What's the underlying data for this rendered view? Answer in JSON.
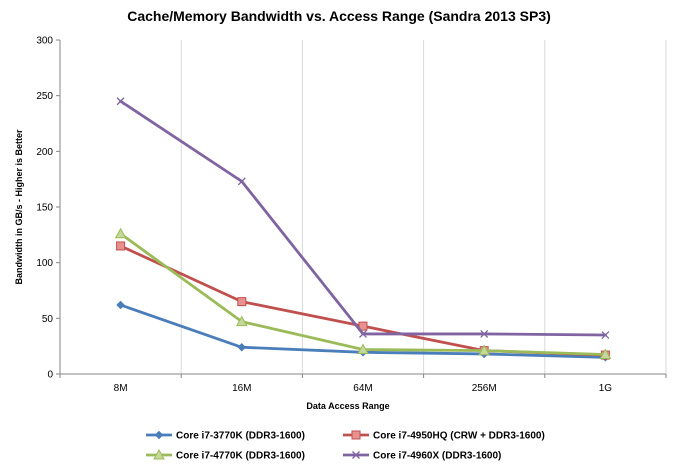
{
  "chart_data": {
    "type": "line",
    "title": "Cache/Memory Bandwidth vs. Access Range (Sandra 2013 SP3)",
    "xlabel": "Data Access Range",
    "ylabel": "Bandwidth in GB/s - Higher is Better",
    "categories": [
      "8M",
      "16M",
      "64M",
      "256M",
      "1G"
    ],
    "ylim": [
      0,
      300
    ],
    "yticks": [
      0,
      50,
      100,
      150,
      200,
      250,
      300
    ],
    "grid": "vertical",
    "legend_position": "bottom",
    "series": [
      {
        "name": "Core i7-3770K (DDR3-1600)",
        "color": "#4a7ebb",
        "marker": "diamond",
        "values": [
          62,
          24,
          19.5,
          18,
          15
        ]
      },
      {
        "name": "Core i7-4950HQ (CRW + DDR3-1600)",
        "color": "#c0504d",
        "marker": "square",
        "values": [
          115,
          65,
          43,
          21,
          17
        ]
      },
      {
        "name": "Core i7-4770K (DDR3-1600)",
        "color": "#9bbb59",
        "marker": "triangle",
        "values": [
          126,
          47,
          22,
          21,
          17.5
        ]
      },
      {
        "name": "Core i7-4960X (DDR3-1600)",
        "color": "#8064a2",
        "marker": "x",
        "values": [
          245,
          173,
          36,
          36,
          35
        ]
      }
    ]
  }
}
